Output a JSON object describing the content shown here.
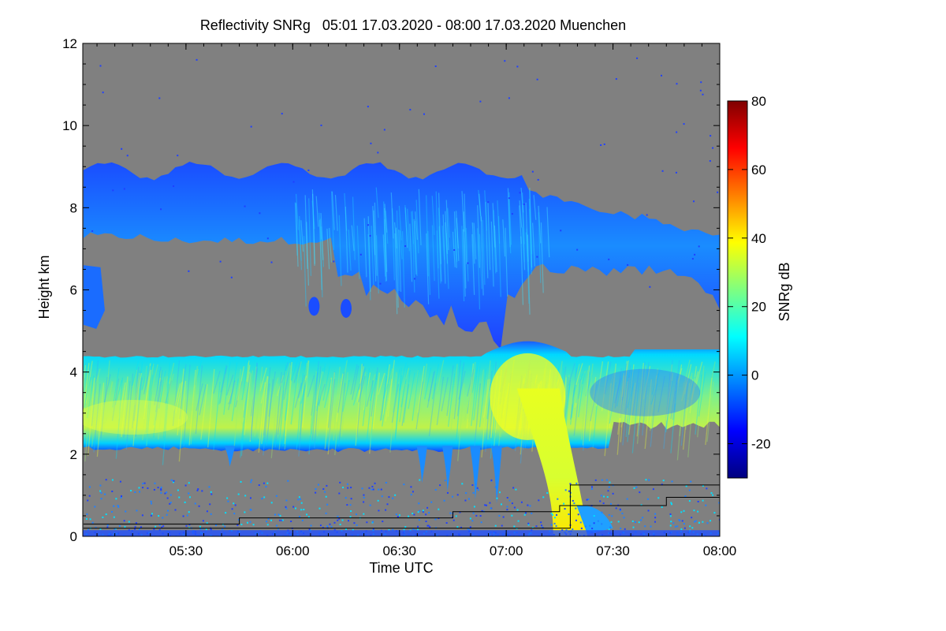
{
  "chart_data": {
    "type": "heatmap",
    "title": "Reflectivity SNRg   05:01 17.03.2020 - 08:00 17.03.2020 Muenchen",
    "xlabel": "Time UTC",
    "ylabel": "Height km",
    "x_ticks": [
      "05:30",
      "06:00",
      "06:30",
      "07:00",
      "07:30",
      "08:00"
    ],
    "x_tick_hours": [
      5.5,
      6.0,
      6.5,
      7.0,
      7.5,
      8.0
    ],
    "xlim_hours": [
      5.0167,
      8.0
    ],
    "y_ticks": [
      0,
      2,
      4,
      6,
      8,
      10,
      12
    ],
    "ylim": [
      0,
      12
    ],
    "colorbar": {
      "label": "SNRg dB",
      "ticks": [
        -20,
        0,
        20,
        40,
        60,
        80
      ],
      "range": [
        -30,
        80
      ],
      "colormap": "jet"
    },
    "background_color": "#808080",
    "layers": [
      {
        "label": "upper cloud layer",
        "x_range_hours": [
          5.02,
          8.0
        ],
        "height_range_km": [
          5.3,
          9.1
        ],
        "snr_range_db": [
          -25,
          10
        ]
      },
      {
        "label": "lower cloud layer",
        "x_range_hours": [
          5.02,
          8.0
        ],
        "height_range_km": [
          2.0,
          4.8
        ],
        "snr_range_db": [
          -15,
          38
        ]
      },
      {
        "label": "precipitation shaft",
        "x_range_hours": [
          7.1,
          7.5
        ],
        "height_range_km": [
          0.0,
          4.8
        ],
        "snr_range_db": [
          20,
          40
        ]
      }
    ],
    "lines": [
      {
        "color": "#000000",
        "points": [
          [
            5.02,
            0.3
          ],
          [
            5.75,
            0.3
          ],
          [
            5.75,
            0.45
          ],
          [
            6.75,
            0.45
          ],
          [
            6.75,
            0.6
          ],
          [
            7.25,
            0.6
          ],
          [
            7.25,
            0.75
          ],
          [
            7.75,
            0.75
          ],
          [
            7.75,
            0.95
          ],
          [
            8.0,
            0.95
          ]
        ]
      },
      {
        "color": "#000000",
        "points": [
          [
            5.02,
            0.2
          ],
          [
            7.3,
            0.2
          ],
          [
            7.3,
            1.25
          ],
          [
            8.0,
            1.25
          ]
        ]
      }
    ]
  }
}
